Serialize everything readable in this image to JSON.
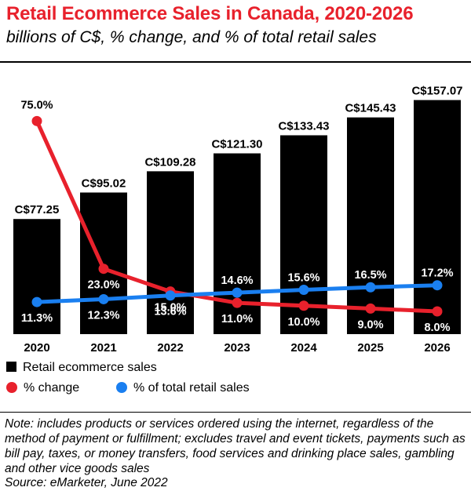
{
  "header": {
    "title": "Retail Ecommerce Sales in Canada, 2020-2026",
    "subtitle": "billions of C$, % change, and % of total retail sales"
  },
  "chart_data": {
    "type": "bar",
    "categories": [
      "2020",
      "2021",
      "2022",
      "2023",
      "2024",
      "2025",
      "2026"
    ],
    "series": [
      {
        "name": "Retail ecommerce sales",
        "kind": "bar",
        "color": "#000000",
        "values": [
          77.25,
          95.02,
          109.28,
          121.3,
          133.43,
          145.43,
          157.07
        ],
        "labels": [
          "C$77.25",
          "C$95.02",
          "C$109.28",
          "C$121.30",
          "C$133.43",
          "C$145.43",
          "C$157.07"
        ]
      },
      {
        "name": "% change",
        "kind": "line",
        "color": "#e8212c",
        "values": [
          75.0,
          23.0,
          15.0,
          11.0,
          10.0,
          9.0,
          8.0
        ],
        "labels": [
          "75.0%",
          "23.0%",
          "15.0%",
          "11.0%",
          "10.0%",
          "9.0%",
          "8.0%"
        ]
      },
      {
        "name": "% of total retail sales",
        "kind": "line",
        "color": "#1a7ff0",
        "values": [
          11.3,
          12.3,
          13.6,
          14.6,
          15.6,
          16.5,
          17.2
        ],
        "labels": [
          "11.3%",
          "12.3%",
          "13.6%",
          "14.6%",
          "15.6%",
          "16.5%",
          "17.2%"
        ]
      }
    ],
    "bar_ylim": [
      0,
      160
    ],
    "line_ylim": [
      0,
      90
    ],
    "legend": {
      "bar": "Retail ecommerce sales",
      "red": "% change",
      "blue": "% of total retail sales"
    }
  },
  "footer": {
    "note": "Note: includes products or services ordered using the internet, regardless of the method of payment or fulfillment; excludes travel and event tickets, payments such as bill pay, taxes, or money transfers, food services and drinking place sales, gambling and other vice goods sales",
    "source": "Source: eMarketer, June 2022"
  }
}
